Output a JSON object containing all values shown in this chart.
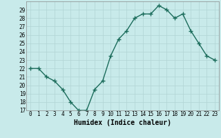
{
  "x": [
    0,
    1,
    2,
    3,
    4,
    5,
    6,
    7,
    8,
    9,
    10,
    11,
    12,
    13,
    14,
    15,
    16,
    17,
    18,
    19,
    20,
    21,
    22,
    23
  ],
  "y": [
    22,
    22,
    21,
    20.5,
    19.5,
    18,
    17,
    17,
    19.5,
    20.5,
    23.5,
    25.5,
    26.5,
    28,
    28.5,
    28.5,
    29.5,
    29,
    28,
    28.5,
    26.5,
    25,
    23.5,
    23
  ],
  "line_color": "#1a6b5a",
  "marker_color": "#1a6b5a",
  "bg_color": "#c8eaea",
  "grid_color": "#b0d4d4",
  "xlabel": "Humidex (Indice chaleur)",
  "ylim": [
    17,
    30
  ],
  "yticks": [
    17,
    18,
    19,
    20,
    21,
    22,
    23,
    24,
    25,
    26,
    27,
    28,
    29
  ],
  "xlim": [
    -0.5,
    23.5
  ],
  "xticks": [
    0,
    1,
    2,
    3,
    4,
    5,
    6,
    7,
    8,
    9,
    10,
    11,
    12,
    13,
    14,
    15,
    16,
    17,
    18,
    19,
    20,
    21,
    22,
    23
  ],
  "tick_fontsize": 5.5,
  "xlabel_fontsize": 7,
  "marker_size": 2.5,
  "line_width": 1.0
}
